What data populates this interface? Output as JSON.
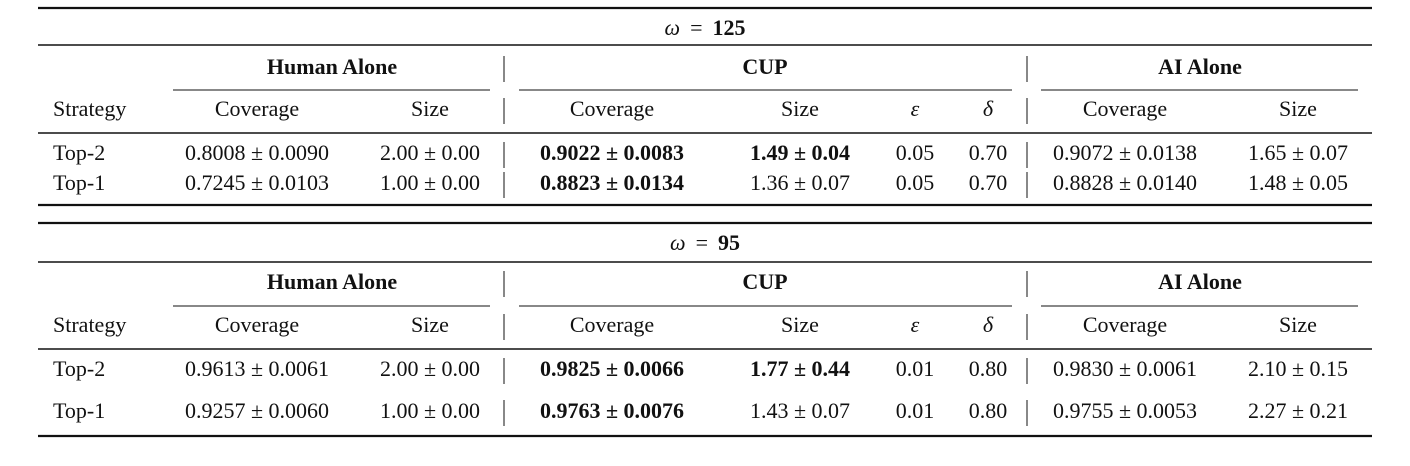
{
  "tables": [
    {
      "title": {
        "variable": "ω",
        "relation": "=",
        "value": 125
      },
      "groups": [
        "Human Alone",
        "CUP",
        "AI Alone"
      ],
      "columns": [
        "Strategy",
        "Coverage",
        "Size",
        "Coverage",
        "Size",
        "ε",
        "δ",
        "Coverage",
        "Size"
      ],
      "rows": [
        {
          "cells": [
            "Top-2",
            "0.8008 ± 0.0090",
            "2.00 ± 0.00",
            "0.9022 ± 0.0083",
            "1.49 ± 0.04",
            "0.05",
            "0.70",
            "0.9072 ± 0.0138",
            "1.65 ± 0.07"
          ],
          "bold": [
            3,
            4
          ]
        },
        {
          "cells": [
            "Top-1",
            "0.7245 ± 0.0103",
            "1.00 ± 0.00",
            "0.8823 ± 0.0134",
            "1.36 ± 0.07",
            "0.05",
            "0.70",
            "0.8828 ± 0.0140",
            "1.48 ± 0.05"
          ],
          "bold": [
            3
          ]
        }
      ]
    },
    {
      "title": {
        "variable": "ω",
        "relation": "=",
        "value": 95
      },
      "groups": [
        "Human Alone",
        "CUP",
        "AI Alone"
      ],
      "columns": [
        "Strategy",
        "Coverage",
        "Size",
        "Coverage",
        "Size",
        "ε",
        "δ",
        "Coverage",
        "Size"
      ],
      "rows": [
        {
          "cells": [
            "Top-2",
            "0.9613 ± 0.0061",
            "2.00 ± 0.00",
            "0.9825 ± 0.0066",
            "1.77 ± 0.44",
            "0.01",
            "0.80",
            "0.9830 ± 0.0061",
            "2.10 ± 0.15"
          ],
          "bold": [
            3,
            4
          ]
        },
        {
          "cells": [
            "Top-1",
            "0.9257 ± 0.0060",
            "1.00 ± 0.00",
            "0.9763 ± 0.0076",
            "1.43 ± 0.07",
            "0.01",
            "0.80",
            "0.9755 ± 0.0053",
            "2.27 ± 0.21"
          ],
          "bold": [
            3
          ]
        }
      ]
    }
  ]
}
